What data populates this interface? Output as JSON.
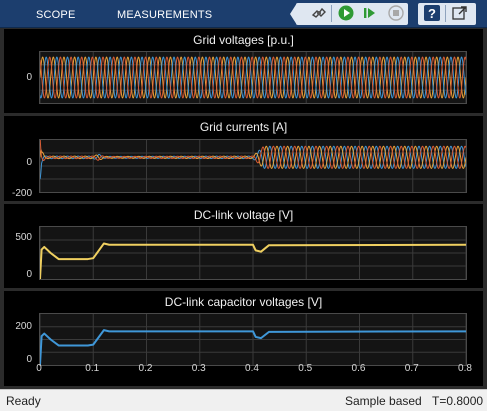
{
  "toolstrip": {
    "tabs": [
      "SCOPE",
      "MEASUREMENTS"
    ],
    "buttons": [
      "simulink-icon",
      "run-icon",
      "step-forward-icon",
      "stop-icon",
      "help-icon",
      "undock-icon"
    ]
  },
  "colors": {
    "toolstrip_bg": "#1c3e6e",
    "plot_bg": "#141414",
    "phase_a": "#e8a33a",
    "phase_b": "#3f97d8",
    "phase_c": "#d95c35",
    "dc_link": "#f0d060",
    "cap_voltages": "#3f97d8"
  },
  "chart_data": [
    {
      "type": "line",
      "title": "Grid voltages [p.u.]",
      "xlim": [
        0,
        0.8
      ],
      "yticks": [
        "0"
      ],
      "series_colors": [
        "#e8a33a",
        "#3f97d8",
        "#d95c35"
      ],
      "signal": "three-phase sinusoid, amplitude 1 p.u., constant over 0–0.8 s",
      "ylim": [
        -1.25,
        1.25
      ]
    },
    {
      "type": "line",
      "title": "Grid currents [A]",
      "xlim": [
        0,
        0.8
      ],
      "ylim": [
        -220,
        110
      ],
      "yticks": [
        "0",
        "-200"
      ],
      "series_colors": [
        "#e8a33a",
        "#3f97d8",
        "#d95c35"
      ],
      "envelope": {
        "x": [
          0,
          0.003,
          0.01,
          0.1,
          0.11,
          0.12,
          0.4,
          0.42,
          0.8
        ],
        "amplitude": [
          160,
          40,
          8,
          8,
          20,
          6,
          8,
          70,
          70
        ]
      }
    },
    {
      "type": "line",
      "title": "DC-link voltage [V]",
      "xlim": [
        0,
        0.8
      ],
      "ylim": [
        0,
        600
      ],
      "yticks": [
        "500",
        "0"
      ],
      "series_colors": [
        "#f0d060"
      ],
      "x": [
        0,
        0.003,
        0.008,
        0.02,
        0.035,
        0.09,
        0.1,
        0.12,
        0.13,
        0.4,
        0.405,
        0.415,
        0.43,
        0.8
      ],
      "y": [
        0,
        340,
        370,
        300,
        230,
        230,
        240,
        410,
        395,
        395,
        330,
        315,
        390,
        395
      ]
    },
    {
      "type": "line",
      "title": "DC-link capacitor voltages [V]",
      "xlim": [
        0,
        0.8
      ],
      "ylim": [
        0,
        300
      ],
      "yticks": [
        "200",
        "0"
      ],
      "xticks": [
        "0",
        "0.1",
        "0.2",
        "0.3",
        "0.4",
        "0.5",
        "0.6",
        "0.7",
        "0.8"
      ],
      "series_colors": [
        "#3f97d8"
      ],
      "x": [
        0,
        0.003,
        0.008,
        0.02,
        0.035,
        0.09,
        0.1,
        0.12,
        0.13,
        0.4,
        0.405,
        0.415,
        0.43,
        0.8
      ],
      "y": [
        0,
        170,
        185,
        150,
        115,
        115,
        120,
        205,
        198,
        198,
        165,
        158,
        195,
        198
      ]
    }
  ],
  "statusbar": {
    "status": "Ready",
    "mode": "Sample based",
    "time": "T=0.8000"
  }
}
